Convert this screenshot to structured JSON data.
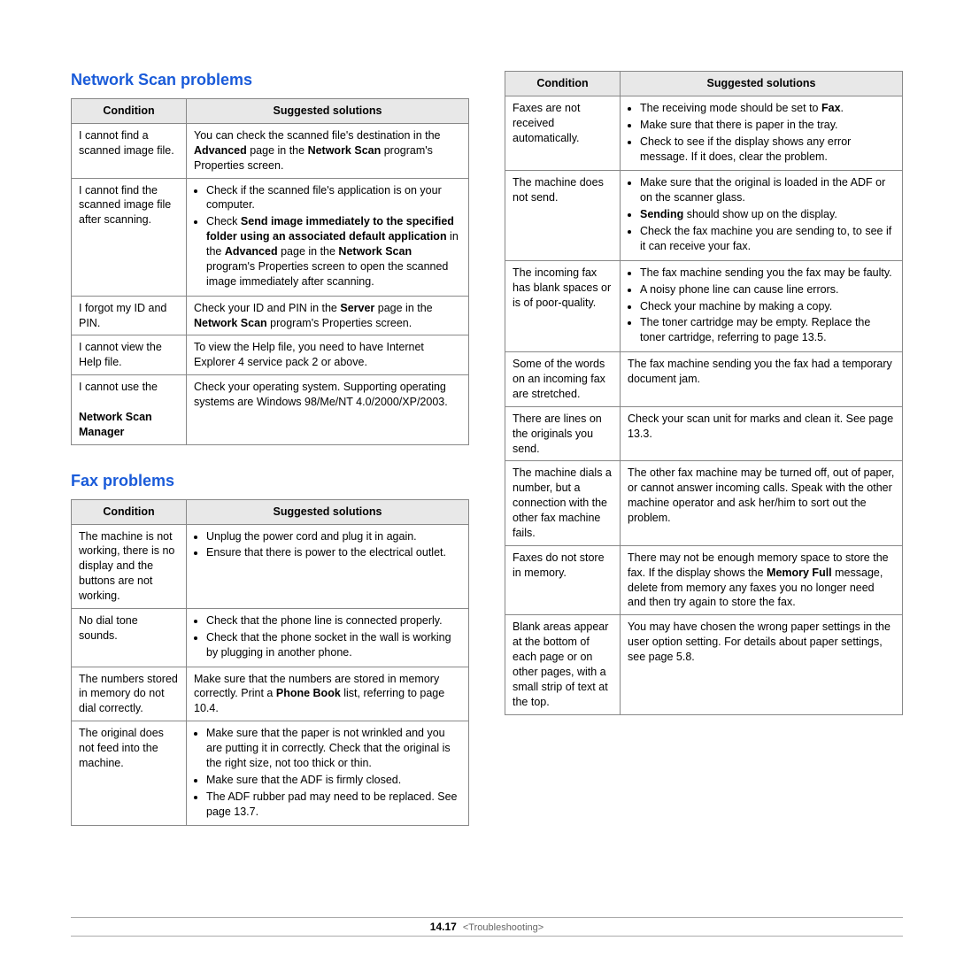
{
  "colors": {
    "heading": "#1a5bd9",
    "header_bg": "#e8e8e8",
    "border": "#888888"
  },
  "sections": {
    "network_scan": {
      "title": "Network Scan problems",
      "headers": [
        "Condition",
        "Suggested solutions"
      ],
      "rows": [
        {
          "condition": "I cannot find a scanned image file.",
          "solution_html": "You can check the scanned file's destination in the <b>Advanced</b> page in the <b>Network Scan</b> program's Properties screen."
        },
        {
          "condition": "I cannot find the scanned image file after scanning.",
          "solution_html": "<ul class='sol'><li>Check if the scanned file's application is on your computer.</li><li>Check <b>Send image immediately to the specified folder using an associated default application</b> in the <b>Advanced</b> page in the <b>Network Scan</b> program's Properties screen to open the scanned image immediately after scanning.</li></ul>"
        },
        {
          "condition": "I forgot my ID and PIN.",
          "solution_html": "Check your ID and PIN in the <b>Server</b> page in the <b>Network Scan</b> program's Properties screen."
        },
        {
          "condition": "I cannot view the Help file.",
          "solution_html": "To view the Help file, you need to have Internet Explorer 4 service pack 2 or above."
        },
        {
          "condition_html": "I cannot use the<br><br><b>Network Scan Manager</b>",
          "solution_html": "Check your operating system. Supporting operating systems are Windows 98/Me/NT 4.0/2000/XP/2003."
        }
      ]
    },
    "fax_left": {
      "title": "Fax problems",
      "headers": [
        "Condition",
        "Suggested solutions"
      ],
      "rows": [
        {
          "condition": "The machine is not working, there is no display and the buttons are not working.",
          "solution_html": "<ul class='sol'><li>Unplug the power cord and plug it in again.</li><li>Ensure that there is power to the electrical outlet.</li></ul>"
        },
        {
          "condition": "No dial tone sounds.",
          "solution_html": "<ul class='sol'><li>Check that the phone line is connected properly.</li><li>Check that the phone socket in the wall is working by plugging in another phone.</li></ul>"
        },
        {
          "condition": "The numbers stored in memory do not dial correctly.",
          "solution_html": "Make sure that the numbers are stored in memory correctly. Print a <b>Phone Book</b> list, referring to page 10.4."
        },
        {
          "condition": "The original does not feed into the machine.",
          "solution_html": "<ul class='sol'><li>Make sure that the paper is not wrinkled and you are putting it in correctly. Check that the original is the right size, not too thick or thin.</li><li>Make sure that the ADF is firmly closed.</li><li>The ADF rubber pad may need to be replaced. See page 13.7.</li></ul>"
        }
      ]
    },
    "fax_right": {
      "headers": [
        "Condition",
        "Suggested solutions"
      ],
      "rows": [
        {
          "condition": "Faxes are not received automatically.",
          "solution_html": "<ul class='sol'><li>The receiving mode should be set to <b>Fax</b>.</li><li>Make sure that there is paper in the tray.</li><li>Check to see if the display shows any error message. If it does, clear the problem.</li></ul>"
        },
        {
          "condition": "The machine does not send.",
          "solution_html": "<ul class='sol'><li>Make sure that the original is loaded in the ADF or on the scanner glass.</li><li><b>Sending</b> should show up on the display.</li><li>Check the fax machine you are sending to, to see if it can receive your fax.</li></ul>"
        },
        {
          "condition": "The incoming fax has blank spaces or is of poor-quality.",
          "solution_html": "<ul class='sol'><li>The fax machine sending you the fax may be faulty.</li><li>A noisy phone line can cause line errors.</li><li>Check your machine by making a copy.</li><li>The toner cartridge may be empty. Replace the toner cartridge, referring to page 13.5.</li></ul>"
        },
        {
          "condition": "Some of the words on an incoming fax are stretched.",
          "solution_html": "The fax machine sending you the fax had a temporary document jam."
        },
        {
          "condition": "There are lines on the originals you send.",
          "solution_html": "Check your scan unit for marks and clean it. See page 13.3."
        },
        {
          "condition": "The machine dials a number, but a connection with the other fax machine fails.",
          "solution_html": "The other fax machine may be turned off, out of paper, or cannot answer incoming calls. Speak with the other machine operator and ask her/him to sort out the problem."
        },
        {
          "condition": "Faxes do not store in memory.",
          "solution_html": "There may not be enough memory space to store the fax. If the display shows the <b>Memory Full</b> message, delete from memory any faxes you no longer need and then try again to store the fax."
        },
        {
          "condition": "Blank areas appear at the bottom of each page or on other pages, with a small strip of text at the top.",
          "solution_html": "You may have chosen the wrong paper settings in the user option setting. For details about paper settings, see page 5.8."
        }
      ]
    }
  },
  "footer": {
    "page_number": "14.17",
    "section_label": "<Troubleshooting>"
  }
}
